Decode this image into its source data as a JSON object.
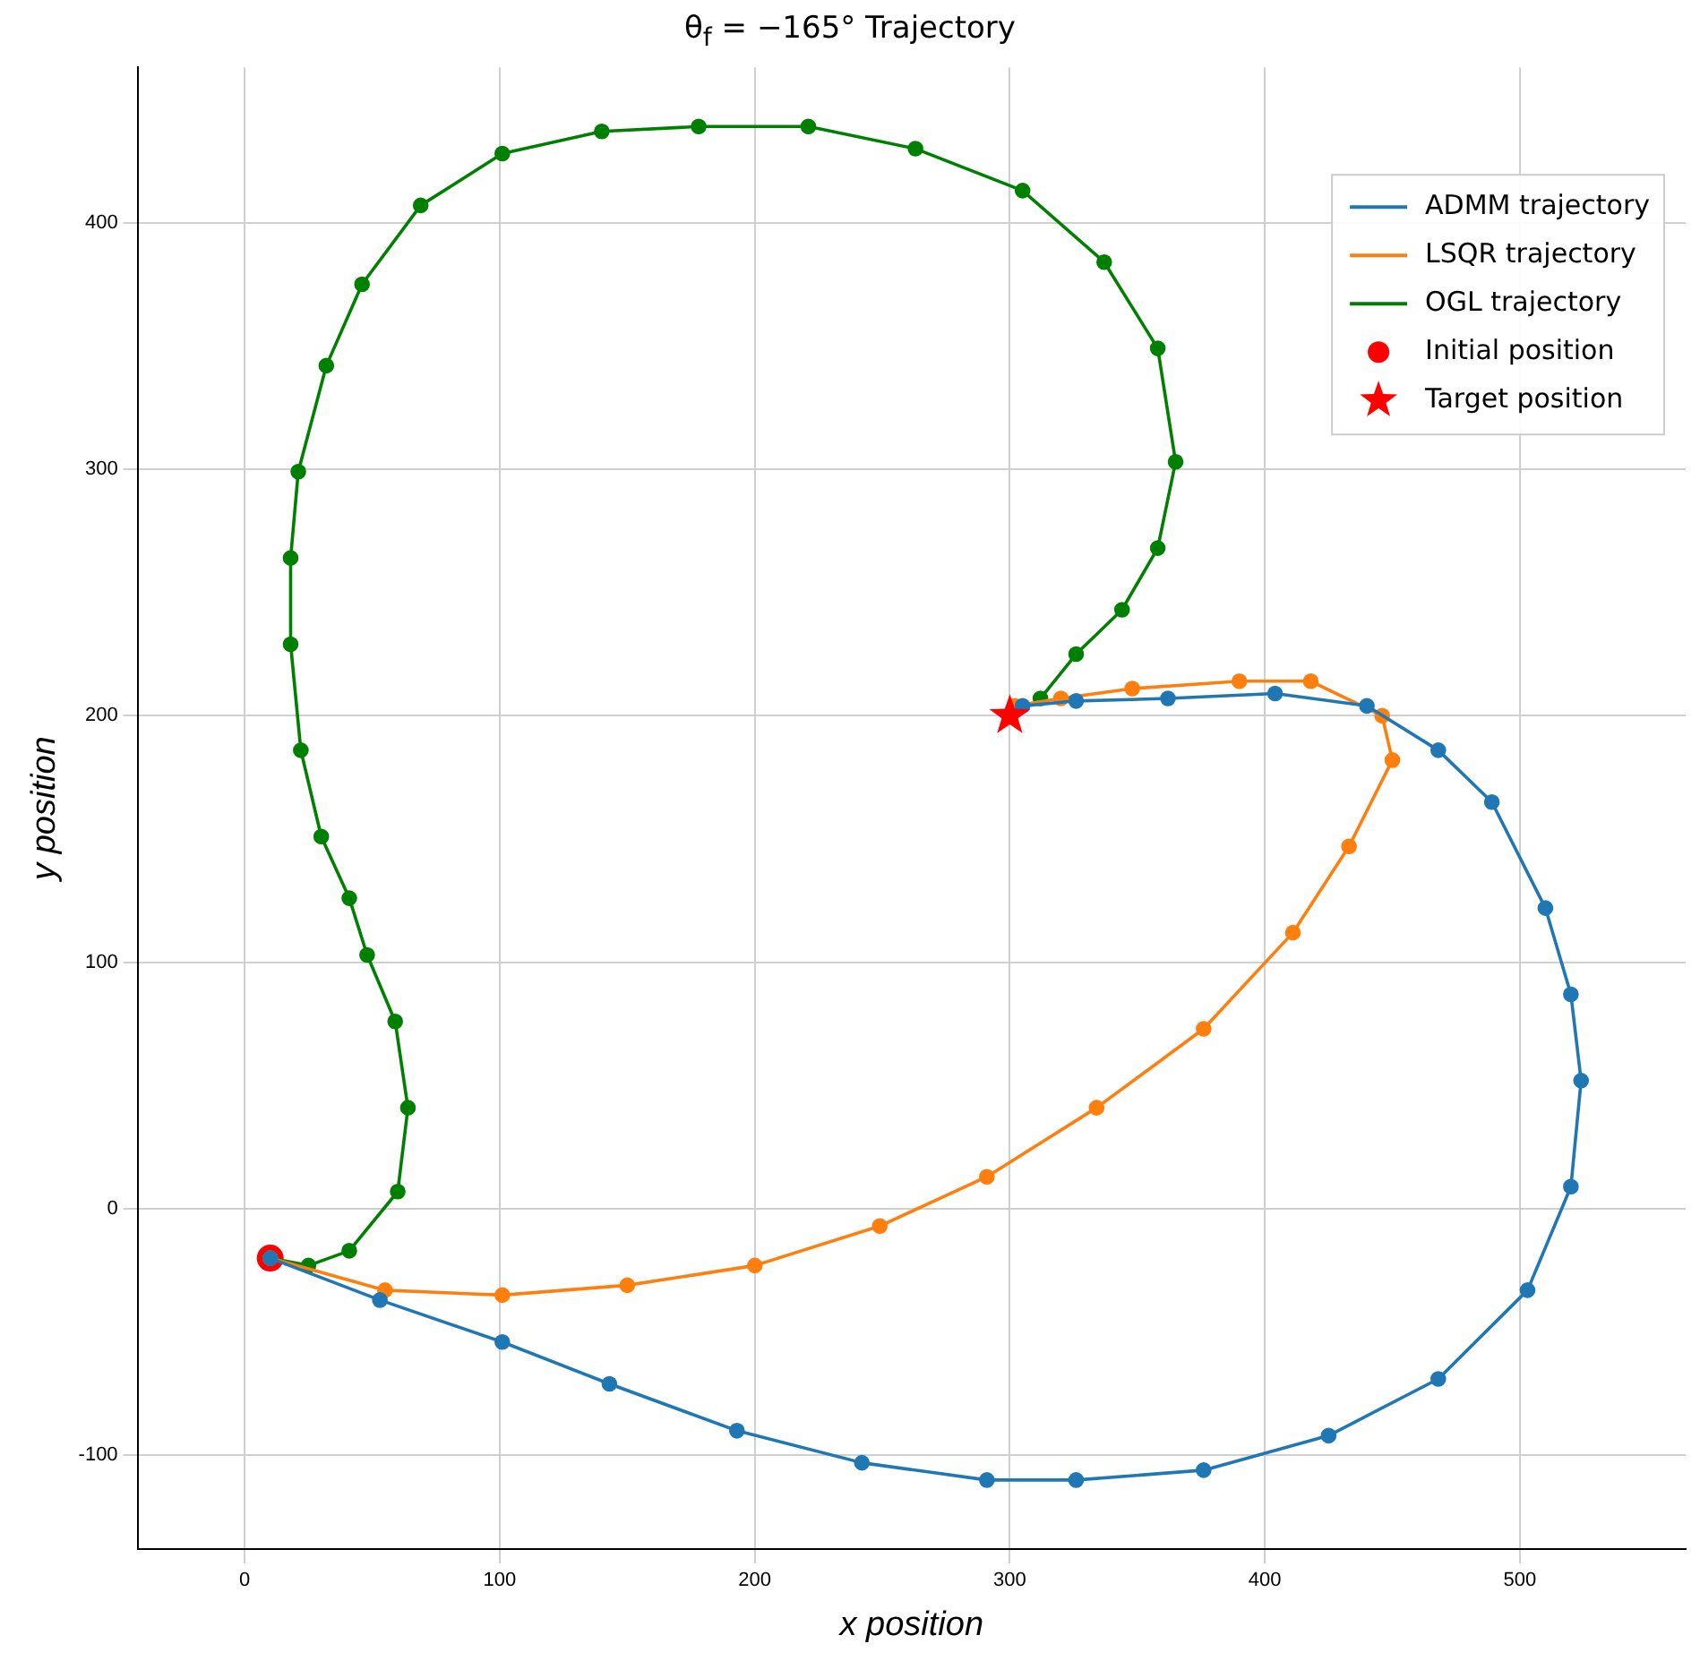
{
  "chart_data": {
    "type": "line",
    "title": "θ$_{f}$ = −165° Trajectory",
    "xlabel": "x position",
    "ylabel": "y position",
    "xlim": [
      -42,
      565
    ],
    "ylim": [
      -138,
      463
    ],
    "xticks": [
      0,
      100,
      200,
      300,
      400,
      500
    ],
    "yticks": [
      -100,
      0,
      100,
      200,
      300,
      400
    ],
    "grid": true,
    "legend": "top right",
    "marker": "circle",
    "series": [
      {
        "name": "ADMM trajectory",
        "color": "#1f77b4",
        "x": [
          10,
          53,
          101,
          143,
          193,
          242,
          291,
          326,
          376,
          425,
          468,
          503,
          520,
          524,
          520,
          510,
          489,
          468,
          440,
          404,
          362,
          326,
          305
        ],
        "values": [
          -20,
          -37,
          -54,
          -71,
          -90,
          -103,
          -110,
          -110,
          -106,
          -92,
          -69,
          -33,
          9,
          52,
          87,
          122,
          165,
          186,
          204,
          209,
          207,
          206,
          204
        ]
      },
      {
        "name": "LSQR trajectory",
        "color": "#ff7f0e",
        "x": [
          10,
          55,
          101,
          150,
          200,
          249,
          291,
          334,
          376,
          411,
          433,
          450,
          446,
          418,
          390,
          348,
          320,
          302
        ],
        "values": [
          -20,
          -33,
          -35,
          -31,
          -23,
          -7,
          13,
          41,
          73,
          112,
          147,
          182,
          200,
          214,
          214,
          211,
          207,
          204
        ]
      },
      {
        "name": "OGL trajectory",
        "color": "#008000",
        "x": [
          10,
          25,
          41,
          60,
          64,
          59,
          48,
          41,
          30,
          22,
          18,
          18,
          21,
          32,
          46,
          69,
          101,
          140,
          178,
          221,
          263,
          305,
          337,
          358,
          365,
          358,
          344,
          326,
          312
        ],
        "values": [
          -20,
          -23,
          -17,
          7,
          41,
          76,
          103,
          126,
          151,
          186,
          229,
          264,
          299,
          342,
          375,
          407,
          428,
          437,
          439,
          439,
          430,
          413,
          384,
          349,
          303,
          268,
          243,
          225,
          207
        ]
      },
      {
        "name": "Initial position",
        "color": "#ff0000",
        "type": "scatter",
        "marker": "circle",
        "x": [
          10
        ],
        "values": [
          -20
        ]
      },
      {
        "name": "Target position",
        "color": "#ff0000",
        "type": "scatter",
        "marker": "star",
        "x": [
          300
        ],
        "values": [
          200
        ]
      }
    ]
  }
}
